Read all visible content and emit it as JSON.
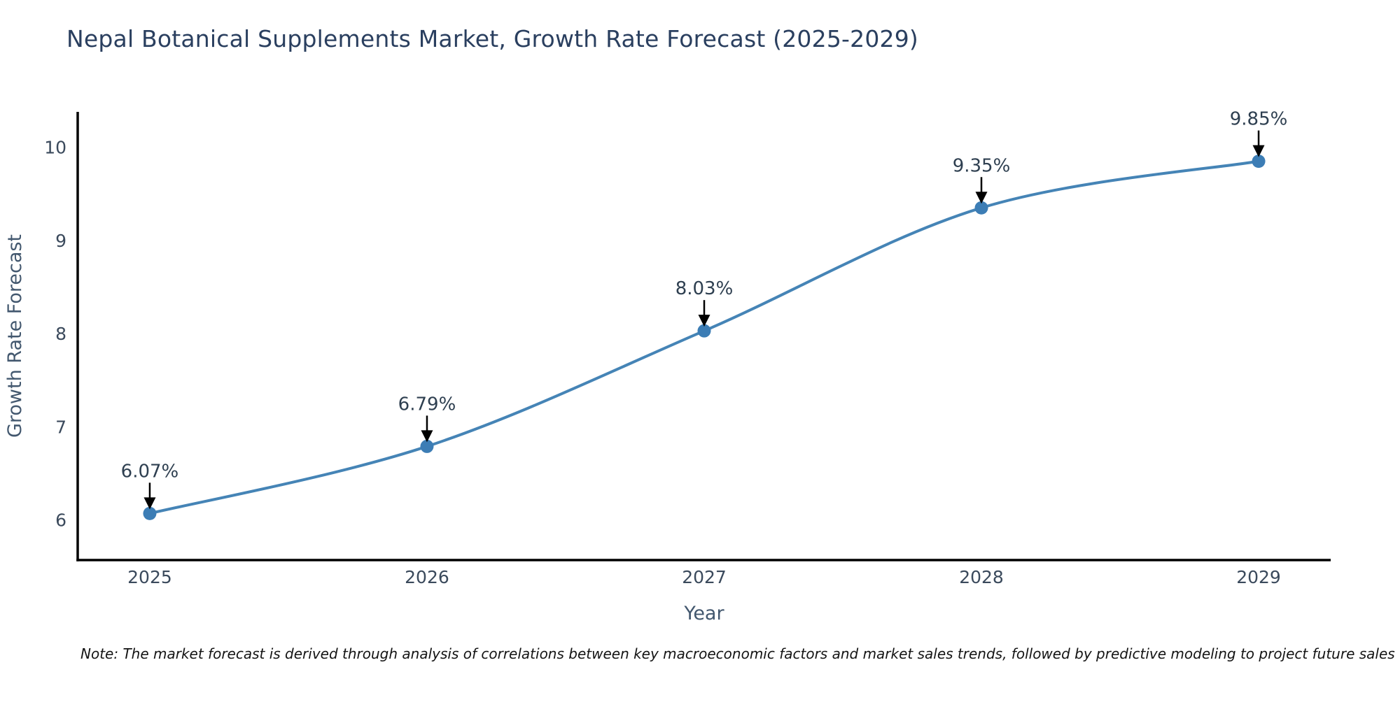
{
  "chart_data": {
    "type": "line",
    "title": "Nepal Botanical Supplements Market, Growth Rate Forecast (2025-2029)",
    "xlabel": "Year",
    "ylabel": "Growth Rate Forecast",
    "x": [
      2025,
      2026,
      2027,
      2028,
      2029
    ],
    "values": [
      6.07,
      6.79,
      8.03,
      9.35,
      9.85
    ],
    "point_labels": [
      "6.07%",
      "6.79%",
      "8.03%",
      "9.35%",
      "9.85%"
    ],
    "x_ticks": [
      "2025",
      "2026",
      "2027",
      "2028",
      "2029"
    ],
    "y_ticks": [
      6,
      7,
      8,
      9,
      10
    ],
    "xlim": [
      2024.74,
      2029.26
    ],
    "ylim": [
      5.57,
      10.38
    ],
    "grid": false,
    "legend": false,
    "line_color": "#4584b6",
    "marker_color": "#3c7db5",
    "arrow_color": "#000000",
    "spine_color": "#000000"
  },
  "note": "Note: The market forecast is derived through analysis of correlations between key macroeconomic factors and market sales trends, followed by predictive modeling to project future sales",
  "colors": {
    "title_text": "#2a3f5f",
    "tick_text": "#3b4a5c",
    "axis_label_text": "#42576e",
    "annotation_text": "#2e3f50",
    "note_text": "#141414",
    "background": "#ffffff"
  }
}
